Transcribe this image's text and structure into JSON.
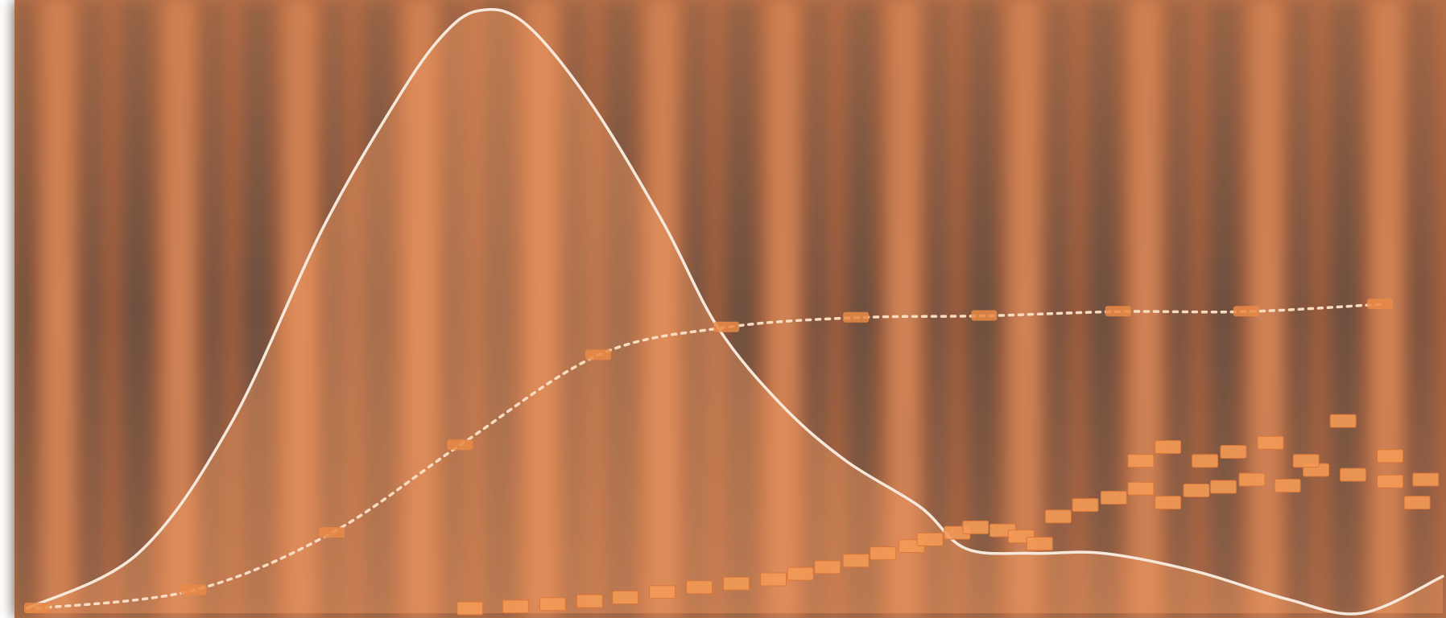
{
  "chart_data": [
    {
      "type": "line",
      "xlim": [
        0,
        100
      ],
      "ylim": [
        0,
        100
      ],
      "fill_under_first": true,
      "series": [
        {
          "color": "#f6e9dc",
          "dash": false,
          "markers": false,
          "x": [
            0.6,
            8.4,
            14.9,
            21.3,
            26.5,
            29.7,
            32.3,
            35.5,
            40.1,
            45.2,
            49.1,
            53.6,
            58.1,
            63.3,
            66.5,
            71.1,
            76.2,
            82.7,
            89.1,
            94.3,
            100
          ],
          "values": [
            0.8,
            9.9,
            31.3,
            63.4,
            84.7,
            95.4,
            99.7,
            97.7,
            84.7,
            64.9,
            47.3,
            34.4,
            25.2,
            17.6,
            10.7,
            9.9,
            9.9,
            6.9,
            2.3,
            0,
            6.1
          ]
        },
        {
          "color": "#f7dcc2",
          "dash": true,
          "markers": true,
          "marker_color": "#e98a45",
          "x": [
            1.3,
            12.3,
            22.0,
            31.0,
            40.7,
            49.7,
            58.8,
            67.8,
            77.2,
            86.2,
            95.6
          ],
          "values": [
            0.8,
            3.8,
            13.3,
            27.8,
            42.7,
            47.3,
            48.9,
            49.2,
            49.9,
            49.9,
            51.1
          ]
        }
      ]
    },
    {
      "type": "scatter",
      "xlim": [
        0,
        100
      ],
      "ylim": [
        0,
        100
      ],
      "color": "#f39a55",
      "x": [
        31.7,
        34.9,
        37.5,
        40.1,
        42.6,
        45.2,
        47.8,
        50.4,
        53.0,
        54.9,
        56.8,
        58.8,
        60.7,
        62.7,
        64.0,
        65.9,
        67.2,
        69.1,
        70.4,
        71.7,
        73.0,
        74.9,
        76.9,
        78.8,
        80.7,
        82.7,
        84.6,
        86.6,
        89.1,
        91.1,
        93.7,
        96.3,
        98.2,
        78.8,
        80.7,
        83.3,
        85.3,
        87.9,
        90.4,
        93.0,
        96.3,
        98.8
      ],
      "values": [
        0.8,
        1.1,
        1.5,
        2.0,
        2.6,
        3.5,
        4.3,
        4.9,
        5.6,
        6.5,
        7.6,
        8.7,
        9.9,
        11.1,
        12.2,
        13.3,
        14.2,
        13.7,
        12.7,
        11.5,
        16.0,
        17.9,
        19.1,
        20.6,
        18.3,
        20.3,
        20.9,
        22.1,
        21.1,
        23.7,
        22.9,
        21.8,
        18.3,
        25.2,
        27.5,
        25.2,
        26.7,
        28.2,
        25.2,
        31.8,
        26.0,
        22.1
      ]
    }
  ]
}
